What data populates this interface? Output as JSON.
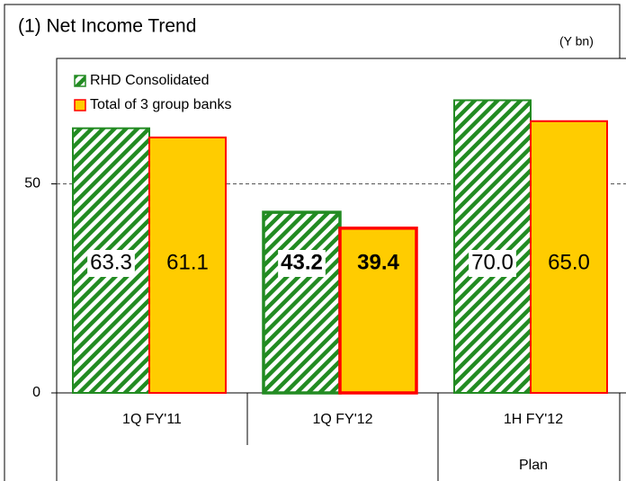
{
  "chart_data": {
    "type": "bar",
    "title": "(1) Net Income Trend",
    "unit": "(Y bn)",
    "categories": [
      "1Q FY'11",
      "1Q FY'12",
      "1H FY'12"
    ],
    "category_sublabels": [
      null,
      null,
      "Plan"
    ],
    "series": [
      {
        "name": "RHD Consolidated",
        "color": "#228b22",
        "values": [
          63.3,
          43.2,
          70.0
        ],
        "value_labels": [
          "63.3",
          "43.2",
          "70.0"
        ]
      },
      {
        "name": "Total of 3 group banks",
        "color": "#ffcc00",
        "edge": "#ff0000",
        "values": [
          61.1,
          39.4,
          65.0
        ],
        "value_labels": [
          "61.1",
          "39.4",
          "65.0"
        ]
      }
    ],
    "ylim": [
      0,
      80
    ],
    "yticks": [
      0,
      50
    ],
    "grid": true
  }
}
